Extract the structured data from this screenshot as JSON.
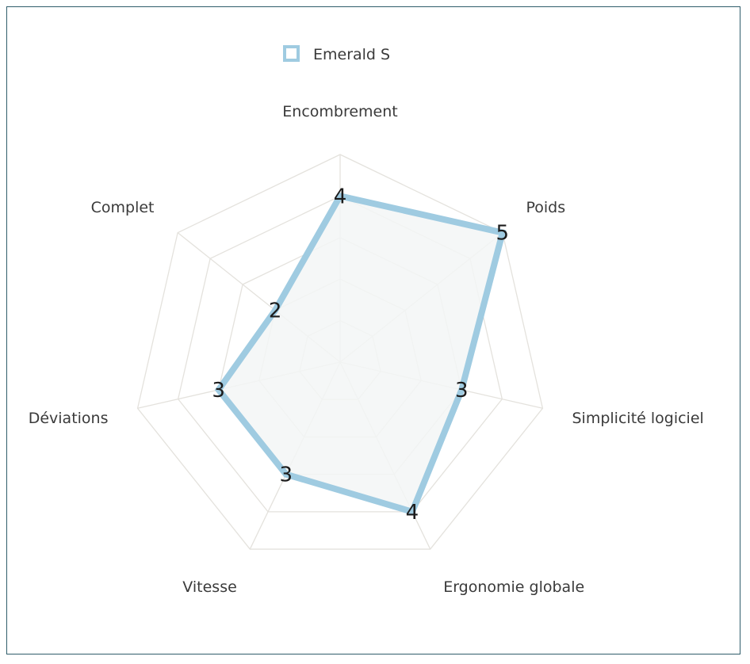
{
  "chart_data": {
    "type": "radar",
    "title": "",
    "categories": [
      "Encombrement",
      "Poids",
      "Simplicité logiciel",
      "Ergonomie globale",
      "Vitesse",
      "Déviations",
      "Complet"
    ],
    "series": [
      {
        "name": "Emerald S",
        "values": [
          4,
          5,
          3,
          4,
          3,
          3,
          2
        ]
      }
    ],
    "range": [
      0,
      5
    ],
    "grid_levels": 5,
    "legend_position": "top",
    "show_value_labels": true,
    "colors": {
      "series_stroke": "#9fcbe1",
      "series_fill": "#f3f6f6",
      "grid": "#e4e2dd",
      "frame": "#2f5d6b"
    }
  }
}
